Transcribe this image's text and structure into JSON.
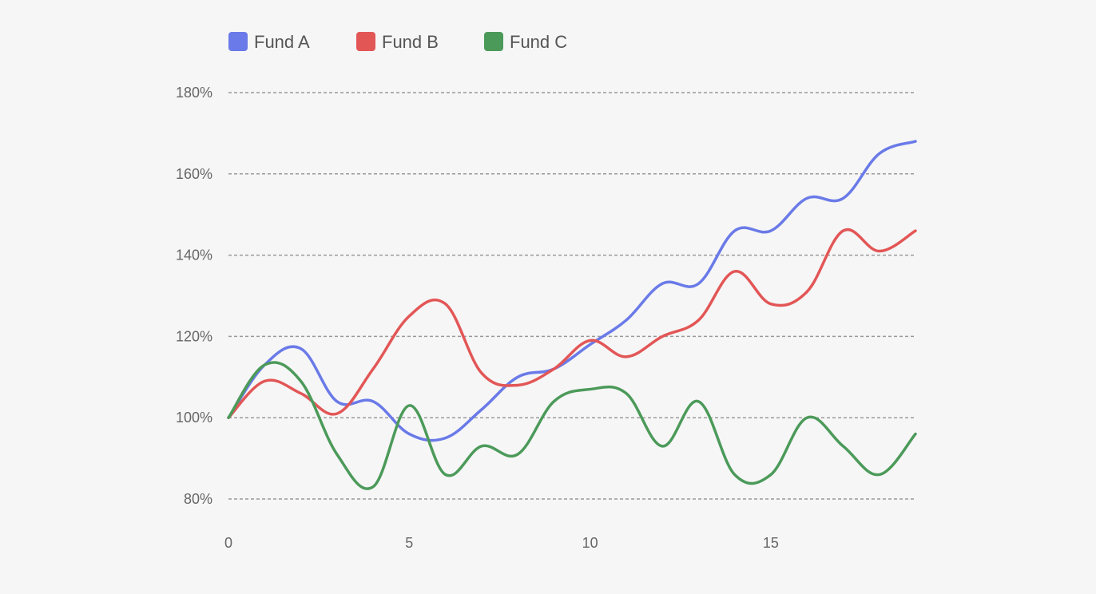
{
  "chart_data": {
    "type": "line",
    "title": "",
    "xlabel": "",
    "ylabel": "",
    "x": [
      0,
      1,
      2,
      3,
      4,
      5,
      6,
      7,
      8,
      9,
      10,
      11,
      12,
      13,
      14,
      15,
      16,
      17,
      18,
      19
    ],
    "xlim": [
      0,
      19
    ],
    "ylim": [
      80,
      180
    ],
    "x_ticks": [
      {
        "value": 0,
        "label": "0"
      },
      {
        "value": 5,
        "label": "5"
      },
      {
        "value": 10,
        "label": "10"
      },
      {
        "value": 15,
        "label": "15"
      }
    ],
    "y_ticks": [
      {
        "value": 80,
        "label": "80%"
      },
      {
        "value": 100,
        "label": "100%"
      },
      {
        "value": 120,
        "label": "120%"
      },
      {
        "value": 140,
        "label": "140%"
      },
      {
        "value": 160,
        "label": "160%"
      },
      {
        "value": 180,
        "label": "180%"
      }
    ],
    "grid": "horizontal dashed",
    "legend_position": "top-left",
    "series": [
      {
        "name": "Fund A",
        "color": "#6a7ae8",
        "values": [
          100,
          113,
          117,
          104,
          104,
          96,
          95,
          102,
          110,
          112,
          118,
          124,
          133,
          133,
          146,
          146,
          154,
          154,
          165,
          168
        ]
      },
      {
        "name": "Fund B",
        "color": "#e35656",
        "values": [
          100,
          109,
          106,
          101,
          112,
          125,
          128,
          111,
          108,
          112,
          119,
          115,
          120,
          124,
          136,
          128,
          131,
          146,
          141,
          146
        ]
      },
      {
        "name": "Fund C",
        "color": "#4c9a5a",
        "values": [
          100,
          113,
          109,
          91,
          83,
          103,
          86,
          93,
          91,
          104,
          107,
          106,
          93,
          104,
          86,
          86,
          100,
          93,
          86,
          96
        ]
      }
    ]
  }
}
